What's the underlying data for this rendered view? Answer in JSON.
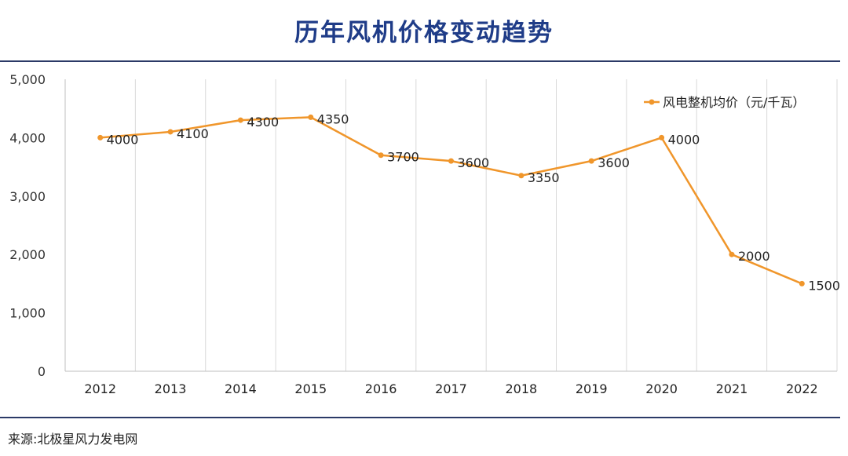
{
  "header": {
    "title": "历年风机价格变动趋势"
  },
  "footer": {
    "source": "来源:北极星风力发电网"
  },
  "colors": {
    "series": "#f0962b",
    "title": "#1f3c88",
    "rule": "#2b3a67"
  },
  "chart_data": {
    "type": "line",
    "title": "历年风机价格变动趋势",
    "xlabel": "",
    "ylabel": "",
    "categories": [
      "2012",
      "2013",
      "2014",
      "2015",
      "2016",
      "2017",
      "2018",
      "2019",
      "2020",
      "2021",
      "2022"
    ],
    "series": [
      {
        "name": "风电整机均价（元/千瓦）",
        "values": [
          4000,
          4100,
          4300,
          4350,
          3700,
          3600,
          3350,
          3600,
          4000,
          2000,
          1500
        ]
      }
    ],
    "ylim": [
      0,
      5000
    ],
    "yticks": [
      0,
      1000,
      2000,
      3000,
      4000,
      5000
    ],
    "ytick_labels": [
      "0",
      "1,000",
      "2,000",
      "3,000",
      "4,000",
      "5,000"
    ],
    "grid": "vertical",
    "legend_position": "top-right"
  }
}
